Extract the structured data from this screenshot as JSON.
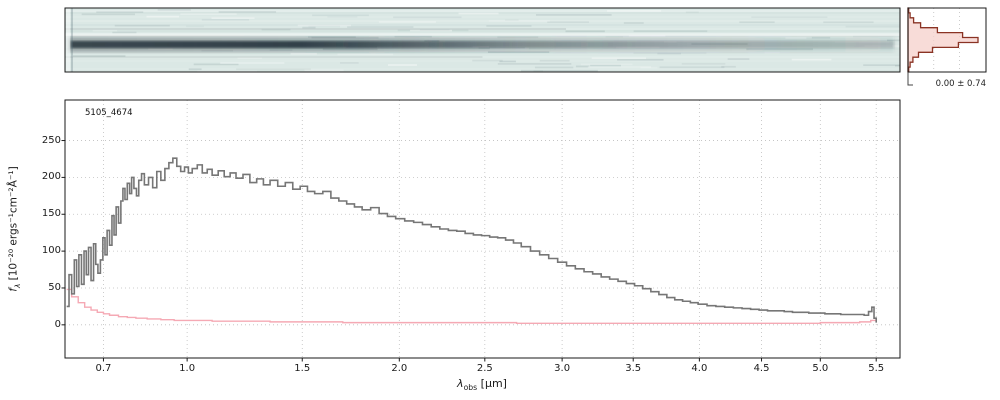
{
  "figure": {
    "title": "5105_4674",
    "xlabel_parts": {
      "pre": "λ",
      "sub": "obs",
      "post": " [μm]"
    },
    "ylabel_parts": {
      "pre": "f",
      "sub": "λ",
      "post": " [10⁻²⁰ ergs⁻¹cm⁻²Å⁻¹]"
    },
    "hist_annotation": "0.00 ± 0.74"
  },
  "colors": {
    "spectrum": "#767676",
    "uncertainty": "#f5a9b4",
    "hist_line": "#8a3324",
    "hist_fill": "#f5d0cb",
    "twod_background": "#dbe8e5",
    "trace_dark": "#24333c",
    "grid": "#bfbfbf",
    "axis": "#1a1a1a"
  },
  "chart_data": [
    {
      "type": "heatmap",
      "panel": "2d-spectrum",
      "description": "2D spectral cutout: pale teal noisy background with a dark horizontal continuum trace along the center, darkest at the blue (left) end and gradually fading toward the red (right) end",
      "x_range_um": [
        0.58,
        5.72
      ]
    },
    {
      "type": "line",
      "panel": "1d-spectrum",
      "title": "5105_4674",
      "xlabel": "λ_obs [μm]",
      "ylabel": "f_λ [10⁻²⁰ ergs⁻¹cm⁻²Å⁻¹]",
      "xscale": "sqrt",
      "xlim": [
        0.58,
        5.72
      ],
      "ylim": [
        -45,
        305
      ],
      "xticks": [
        0.7,
        1.0,
        1.5,
        2.0,
        2.5,
        3.0,
        3.5,
        4.0,
        4.5,
        5.0,
        5.5
      ],
      "xtick_labels": [
        "0.7",
        "1.0",
        "1.5",
        "2.0",
        "2.5",
        "3.0",
        "3.5",
        "4.0",
        "4.5",
        "5.0",
        "5.5"
      ],
      "yticks": [
        0,
        50,
        100,
        150,
        200,
        250
      ],
      "grid": true,
      "legend": false,
      "series": [
        {
          "name": "spectrum",
          "label": "extracted 1D spectrum",
          "color": "#767676",
          "points": [
            [
              0.585,
              25
            ],
            [
              0.592,
              68
            ],
            [
              0.6,
              42
            ],
            [
              0.608,
              88
            ],
            [
              0.615,
              52
            ],
            [
              0.622,
              95
            ],
            [
              0.63,
              55
            ],
            [
              0.638,
              100
            ],
            [
              0.645,
              68
            ],
            [
              0.652,
              105
            ],
            [
              0.66,
              60
            ],
            [
              0.668,
              110
            ],
            [
              0.675,
              82
            ],
            [
              0.682,
              70
            ],
            [
              0.69,
              88
            ],
            [
              0.698,
              118
            ],
            [
              0.705,
              95
            ],
            [
              0.712,
              128
            ],
            [
              0.72,
              108
            ],
            [
              0.728,
              148
            ],
            [
              0.735,
              122
            ],
            [
              0.742,
              160
            ],
            [
              0.75,
              138
            ],
            [
              0.758,
              168
            ],
            [
              0.765,
              185
            ],
            [
              0.772,
              170
            ],
            [
              0.78,
              192
            ],
            [
              0.788,
              178
            ],
            [
              0.795,
              200
            ],
            [
              0.803,
              185
            ],
            [
              0.812,
              175
            ],
            [
              0.82,
              196
            ],
            [
              0.83,
              205
            ],
            [
              0.84,
              190
            ],
            [
              0.855,
              200
            ],
            [
              0.87,
              186
            ],
            [
              0.885,
              208
            ],
            [
              0.9,
              196
            ],
            [
              0.915,
              212
            ],
            [
              0.93,
              220
            ],
            [
              0.945,
              226
            ],
            [
              0.96,
              215
            ],
            [
              0.975,
              208
            ],
            [
              0.99,
              214
            ],
            [
              1.005,
              206
            ],
            [
              1.02,
              212
            ],
            [
              1.04,
              217
            ],
            [
              1.06,
              206
            ],
            [
              1.08,
              211
            ],
            [
              1.1,
              203
            ],
            [
              1.125,
              209
            ],
            [
              1.15,
              201
            ],
            [
              1.175,
              206
            ],
            [
              1.2,
              199
            ],
            [
              1.23,
              204
            ],
            [
              1.26,
              193
            ],
            [
              1.29,
              198
            ],
            [
              1.32,
              190
            ],
            [
              1.35,
              196
            ],
            [
              1.385,
              188
            ],
            [
              1.42,
              193
            ],
            [
              1.455,
              184
            ],
            [
              1.49,
              188
            ],
            [
              1.525,
              181
            ],
            [
              1.56,
              178
            ],
            [
              1.6,
              181
            ],
            [
              1.64,
              172
            ],
            [
              1.68,
              168
            ],
            [
              1.72,
              164
            ],
            [
              1.76,
              160
            ],
            [
              1.8,
              156
            ],
            [
              1.845,
              159
            ],
            [
              1.89,
              151
            ],
            [
              1.935,
              147
            ],
            [
              1.98,
              144
            ],
            [
              2.03,
              141
            ],
            [
              2.08,
              139
            ],
            [
              2.13,
              136
            ],
            [
              2.18,
              133
            ],
            [
              2.23,
              130
            ],
            [
              2.28,
              128
            ],
            [
              2.33,
              127
            ],
            [
              2.38,
              124
            ],
            [
              2.43,
              122
            ],
            [
              2.48,
              121
            ],
            [
              2.53,
              119
            ],
            [
              2.58,
              118
            ],
            [
              2.63,
              115
            ],
            [
              2.68,
              111
            ],
            [
              2.73,
              106
            ],
            [
              2.79,
              100
            ],
            [
              2.85,
              95
            ],
            [
              2.91,
              90
            ],
            [
              2.97,
              85
            ],
            [
              3.03,
              80
            ],
            [
              3.09,
              76
            ],
            [
              3.15,
              72
            ],
            [
              3.21,
              69
            ],
            [
              3.27,
              65
            ],
            [
              3.33,
              62
            ],
            [
              3.39,
              59
            ],
            [
              3.45,
              56
            ],
            [
              3.51,
              53
            ],
            [
              3.57,
              49
            ],
            [
              3.63,
              45
            ],
            [
              3.69,
              41
            ],
            [
              3.75,
              37
            ],
            [
              3.81,
              34
            ],
            [
              3.87,
              32
            ],
            [
              3.93,
              30
            ],
            [
              3.99,
              28
            ],
            [
              4.06,
              26
            ],
            [
              4.13,
              25
            ],
            [
              4.2,
              24
            ],
            [
              4.27,
              23
            ],
            [
              4.34,
              22
            ],
            [
              4.41,
              21
            ],
            [
              4.48,
              20
            ],
            [
              4.55,
              19
            ],
            [
              4.62,
              19
            ],
            [
              4.69,
              18
            ],
            [
              4.76,
              17
            ],
            [
              4.83,
              17
            ],
            [
              4.9,
              16
            ],
            [
              4.97,
              16
            ],
            [
              5.04,
              15
            ],
            [
              5.11,
              15
            ],
            [
              5.18,
              14
            ],
            [
              5.25,
              14
            ],
            [
              5.32,
              14
            ],
            [
              5.39,
              13
            ],
            [
              5.43,
              18
            ],
            [
              5.46,
              24
            ],
            [
              5.48,
              9
            ],
            [
              5.5,
              3
            ]
          ]
        },
        {
          "name": "uncertainty",
          "label": "1σ uncertainty",
          "color": "#f5a9b4",
          "points": [
            [
              0.585,
              48
            ],
            [
              0.6,
              38
            ],
            [
              0.62,
              30
            ],
            [
              0.64,
              24
            ],
            [
              0.66,
              20
            ],
            [
              0.68,
              17
            ],
            [
              0.7,
              15
            ],
            [
              0.72,
              13
            ],
            [
              0.75,
              11
            ],
            [
              0.78,
              10
            ],
            [
              0.81,
              9
            ],
            [
              0.85,
              8
            ],
            [
              0.9,
              7
            ],
            [
              0.95,
              6
            ],
            [
              1.0,
              6
            ],
            [
              1.1,
              5
            ],
            [
              1.2,
              5
            ],
            [
              1.35,
              4
            ],
            [
              1.5,
              4
            ],
            [
              1.7,
              3
            ],
            [
              1.9,
              3
            ],
            [
              2.1,
              3
            ],
            [
              2.4,
              3
            ],
            [
              2.7,
              2
            ],
            [
              3.0,
              2
            ],
            [
              3.3,
              2
            ],
            [
              3.6,
              2
            ],
            [
              3.9,
              2
            ],
            [
              4.2,
              2
            ],
            [
              4.5,
              2
            ],
            [
              4.8,
              2
            ],
            [
              5.0,
              3
            ],
            [
              5.2,
              3
            ],
            [
              5.35,
              4
            ],
            [
              5.45,
              6
            ],
            [
              5.5,
              8
            ]
          ]
        }
      ]
    },
    {
      "type": "histogram",
      "panel": "residual-histogram",
      "orientation": "horizontal",
      "annotation": "0.00 ± 0.74",
      "mean": 0.0,
      "sigma": 0.74,
      "bin_edges_sigma": [
        -3.25,
        -2.75,
        -2.25,
        -1.75,
        -1.25,
        -0.75,
        -0.25,
        0.25,
        0.75,
        1.25,
        1.75,
        2.25,
        2.75,
        3.25
      ],
      "counts_norm": [
        0.01,
        0.03,
        0.07,
        0.15,
        0.35,
        0.72,
        1.0,
        0.78,
        0.42,
        0.18,
        0.08,
        0.03,
        0.01
      ],
      "line_color": "#8a3324",
      "fill_color": "#f5d0cb"
    }
  ]
}
